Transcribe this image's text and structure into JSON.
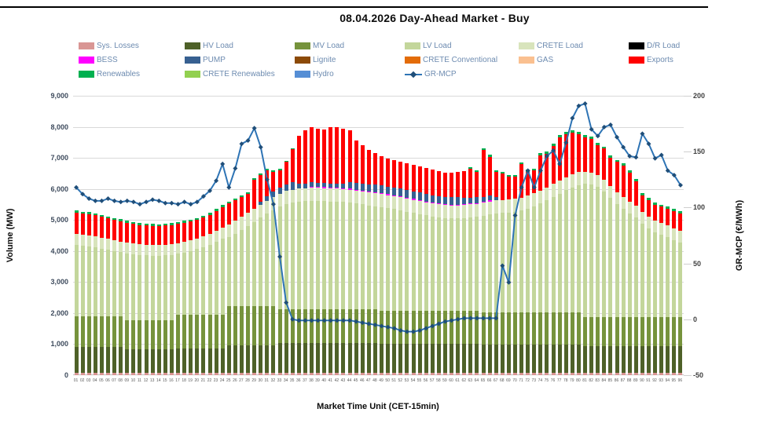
{
  "page": {
    "title": "08.04.2026  Day-Ahead Market - Buy"
  },
  "legend": {
    "items": [
      {
        "label": "Sys. Losses",
        "color": "#d99694",
        "swatch": "box"
      },
      {
        "label": "HV Load",
        "color": "#4e6128",
        "swatch": "box"
      },
      {
        "label": "MV Load",
        "color": "#76933c",
        "swatch": "box"
      },
      {
        "label": "LV Load",
        "color": "#c3d69b",
        "swatch": "box"
      },
      {
        "label": "CRETE Load",
        "color": "#d8e4bc",
        "swatch": "box"
      },
      {
        "label": "D/R Load",
        "color": "#000000",
        "swatch": "box"
      },
      {
        "label": "BESS",
        "color": "#ff00ff",
        "swatch": "box"
      },
      {
        "label": "PUMP",
        "color": "#376091",
        "swatch": "box"
      },
      {
        "label": "Lignite",
        "color": "#8c4a08",
        "swatch": "box"
      },
      {
        "label": "CRETE Conventional",
        "color": "#e36c09",
        "swatch": "box"
      },
      {
        "label": "GAS",
        "color": "#fac090",
        "swatch": "box"
      },
      {
        "label": "Exports",
        "color": "#ff0000",
        "swatch": "box"
      },
      {
        "label": "Renewables",
        "color": "#00b050",
        "swatch": "box"
      },
      {
        "label": "CRETE Renewables",
        "color": "#92d050",
        "swatch": "box"
      },
      {
        "label": "Hydro",
        "color": "#558ed5",
        "swatch": "box"
      },
      {
        "label": "GR-MCP",
        "color": "#2e74b5",
        "marker_color": "#1f4e79",
        "swatch": "line"
      }
    ]
  },
  "axes": {
    "left": {
      "title": "Volume (MW)",
      "ticks": [
        "9,000",
        "8,000",
        "7,000",
        "6,000",
        "5,000",
        "4,000",
        "3,000",
        "2,000",
        "1,000",
        "0"
      ]
    },
    "right": {
      "title": "GR-MCP (€/MWh)",
      "ticks": [
        "200",
        "150",
        "100",
        "50",
        "0",
        "-50"
      ]
    },
    "x": {
      "title": "Market Time Unit (CET-15min)"
    }
  },
  "chart_data": {
    "type": "stacked-bar-line-combo",
    "title": "08.04.2026  Day-Ahead Market - Buy",
    "x_label": "Market Time Unit (CET-15min)",
    "y_left": {
      "label": "Volume (MW)",
      "min": 0,
      "max": 9000,
      "grid_step": 1000,
      "grid": true
    },
    "y_right": {
      "label": "GR-MCP (€/MWh)",
      "min": -50,
      "max": 200,
      "step": 50
    },
    "legend_position": "top",
    "x_labels": [
      "01",
      "02",
      "03",
      "04",
      "05",
      "06",
      "07",
      "08",
      "09",
      "10",
      "11",
      "12",
      "13",
      "14",
      "15",
      "16",
      "17",
      "18",
      "19",
      "20",
      "21",
      "22",
      "23",
      "24",
      "25",
      "26",
      "27",
      "28",
      "29",
      "30",
      "31",
      "32",
      "33",
      "34",
      "35",
      "36",
      "37",
      "38",
      "39",
      "40",
      "41",
      "42",
      "43",
      "44",
      "45",
      "46",
      "47",
      "48",
      "49",
      "50",
      "51",
      "52",
      "53",
      "54",
      "55",
      "56",
      "57",
      "58",
      "59",
      "60",
      "61",
      "62",
      "63",
      "64",
      "65",
      "66",
      "67",
      "68",
      "69",
      "70",
      "71",
      "72",
      "73",
      "74",
      "75",
      "76",
      "77",
      "78",
      "79",
      "80",
      "81",
      "82",
      "83",
      "84",
      "85",
      "86",
      "87",
      "88",
      "89",
      "90",
      "91",
      "92",
      "93",
      "94",
      "95",
      "96"
    ],
    "series": [
      {
        "name": "Sys. Losses",
        "color": "#d99694",
        "values": [
          80,
          80,
          80,
          80,
          80,
          80,
          80,
          80,
          80,
          80,
          80,
          80,
          80,
          80,
          80,
          80,
          80,
          80,
          80,
          80,
          80,
          80,
          80,
          80,
          80,
          80,
          80,
          80,
          80,
          80,
          80,
          80,
          80,
          80,
          80,
          80,
          80,
          80,
          80,
          80,
          80,
          80,
          80,
          80,
          80,
          80,
          80,
          80,
          80,
          80,
          80,
          80,
          80,
          80,
          80,
          80,
          80,
          80,
          80,
          80,
          80,
          80,
          80,
          80,
          80,
          80,
          80,
          80,
          80,
          80,
          80,
          80,
          80,
          80,
          80,
          80,
          80,
          80,
          80,
          80,
          80,
          80,
          80,
          80,
          80,
          80,
          80,
          80,
          80,
          80,
          80,
          80,
          80,
          80,
          80,
          80
        ]
      },
      {
        "name": "HV Load",
        "color": "#4e6128",
        "values": [
          820,
          820,
          820,
          820,
          820,
          820,
          820,
          820,
          760,
          760,
          760,
          760,
          760,
          760,
          760,
          760,
          790,
          790,
          790,
          790,
          790,
          790,
          790,
          790,
          870,
          870,
          870,
          870,
          870,
          870,
          870,
          870,
          950,
          950,
          950,
          950,
          950,
          950,
          950,
          950,
          950,
          950,
          950,
          950,
          950,
          950,
          950,
          950,
          930,
          930,
          930,
          930,
          930,
          930,
          930,
          930,
          930,
          930,
          930,
          930,
          930,
          930,
          930,
          930,
          900,
          900,
          900,
          900,
          900,
          900,
          900,
          900,
          900,
          900,
          900,
          900,
          900,
          900,
          900,
          900,
          860,
          860,
          860,
          860,
          860,
          860,
          860,
          860,
          860,
          860,
          860,
          860,
          860,
          860,
          860,
          860
        ]
      },
      {
        "name": "MV Load",
        "color": "#76933c",
        "values": [
          1000,
          1000,
          1000,
          1000,
          1000,
          1000,
          1000,
          1000,
          940,
          940,
          940,
          940,
          940,
          940,
          940,
          940,
          1080,
          1080,
          1080,
          1080,
          1080,
          1080,
          1080,
          1080,
          1280,
          1280,
          1280,
          1280,
          1280,
          1280,
          1280,
          1280,
          1100,
          1100,
          1100,
          1100,
          1100,
          1100,
          1100,
          1100,
          1100,
          1100,
          1100,
          1100,
          1100,
          1100,
          1100,
          1100,
          1070,
          1070,
          1070,
          1070,
          1070,
          1070,
          1070,
          1070,
          1070,
          1070,
          1070,
          1070,
          1070,
          1070,
          1070,
          1070,
          1050,
          1050,
          1050,
          1050,
          1050,
          1050,
          1050,
          1050,
          1050,
          1050,
          1050,
          1050,
          1050,
          1050,
          1050,
          1050,
          940,
          940,
          940,
          940,
          940,
          940,
          940,
          940,
          940,
          940,
          940,
          940,
          940,
          940,
          940,
          940
        ]
      },
      {
        "name": "LV Load",
        "color": "#c3d69b",
        "values": [
          2300,
          2280,
          2250,
          2220,
          2180,
          2140,
          2100,
          2060,
          2150,
          2120,
          2100,
          2080,
          2070,
          2070,
          2080,
          2100,
          1960,
          2000,
          2050,
          2110,
          2180,
          2260,
          2350,
          2450,
          2210,
          2330,
          2450,
          2580,
          2710,
          2840,
          2970,
          3090,
          3300,
          3380,
          3430,
          3460,
          3480,
          3490,
          3490,
          3480,
          3470,
          3460,
          3450,
          3430,
          3400,
          3370,
          3340,
          3310,
          3330,
          3300,
          3270,
          3230,
          3190,
          3150,
          3110,
          3070,
          3030,
          3000,
          2980,
          2970,
          2970,
          2980,
          3000,
          3020,
          3110,
          3150,
          3180,
          3200,
          3210,
          3230,
          3270,
          3330,
          3410,
          3500,
          3600,
          3710,
          3820,
          3930,
          4020,
          4090,
          4290,
          4260,
          4190,
          4040,
          3840,
          3640,
          3490,
          3340,
          3190,
          2990,
          2840,
          2720,
          2640,
          2560,
          2460,
          2400
        ]
      },
      {
        "name": "CRETE Load",
        "color": "#d8e4bc",
        "values": [
          350,
          350,
          350,
          350,
          350,
          350,
          350,
          350,
          350,
          350,
          350,
          350,
          350,
          350,
          350,
          350,
          350,
          350,
          350,
          350,
          350,
          350,
          350,
          350,
          420,
          420,
          420,
          420,
          420,
          420,
          420,
          420,
          420,
          420,
          420,
          420,
          420,
          420,
          420,
          420,
          420,
          420,
          420,
          420,
          420,
          420,
          420,
          420,
          420,
          420,
          420,
          420,
          420,
          420,
          420,
          420,
          420,
          420,
          420,
          420,
          420,
          420,
          420,
          420,
          420,
          420,
          420,
          420,
          420,
          420,
          420,
          420,
          420,
          420,
          420,
          420,
          420,
          420,
          420,
          420,
          380,
          380,
          380,
          380,
          380,
          380,
          380,
          380,
          380,
          380,
          380,
          380,
          380,
          380,
          380,
          380
        ]
      },
      {
        "name": "BESS",
        "color": "#ff00ff",
        "values": [
          0,
          0,
          0,
          0,
          0,
          0,
          0,
          0,
          0,
          0,
          0,
          0,
          0,
          0,
          0,
          0,
          0,
          0,
          0,
          0,
          0,
          0,
          0,
          0,
          0,
          0,
          0,
          0,
          0,
          0,
          0,
          0,
          0,
          0,
          0,
          0,
          0,
          30,
          30,
          30,
          30,
          30,
          30,
          30,
          30,
          30,
          30,
          30,
          30,
          30,
          30,
          30,
          30,
          30,
          30,
          30,
          30,
          30,
          30,
          30,
          30,
          30,
          30,
          30,
          30,
          30,
          0,
          0,
          0,
          0,
          0,
          0,
          0,
          0,
          0,
          0,
          0,
          0,
          0,
          0,
          0,
          0,
          0,
          0,
          0,
          0,
          0,
          0,
          0,
          0,
          0,
          0,
          0,
          0,
          0,
          0
        ]
      },
      {
        "name": "PUMP",
        "color": "#376091",
        "values": [
          0,
          0,
          0,
          0,
          0,
          0,
          0,
          0,
          0,
          0,
          0,
          0,
          0,
          0,
          0,
          0,
          0,
          0,
          0,
          0,
          0,
          0,
          0,
          0,
          0,
          0,
          0,
          0,
          0,
          100,
          150,
          180,
          200,
          220,
          230,
          150,
          150,
          150,
          130,
          130,
          130,
          130,
          150,
          200,
          220,
          230,
          230,
          250,
          250,
          250,
          250,
          250,
          250,
          250,
          250,
          250,
          230,
          230,
          230,
          230,
          230,
          200,
          180,
          180,
          150,
          150,
          100,
          0,
          0,
          0,
          0,
          0,
          0,
          0,
          0,
          0,
          0,
          0,
          0,
          0,
          0,
          0,
          0,
          0,
          0,
          0,
          0,
          0,
          0,
          0,
          0,
          0,
          0,
          0,
          0,
          0
        ]
      },
      {
        "name": "Exports",
        "color": "#ff0000",
        "values": [
          690,
          680,
          690,
          690,
          680,
          670,
          660,
          650,
          630,
          620,
          610,
          610,
          610,
          600,
          610,
          610,
          610,
          610,
          600,
          590,
          600,
          610,
          640,
          670,
          680,
          660,
          640,
          610,
          930,
          850,
          820,
          620,
          540,
          720,
          1060,
          1540,
          1720,
          1770,
          1750,
          1730,
          1810,
          1830,
          1770,
          1690,
          1350,
          1220,
          1100,
          1010,
          940,
          900,
          870,
          860,
          850,
          840,
          830,
          820,
          830,
          810,
          790,
          790,
          810,
          870,
          930,
          810,
          1520,
          1260,
          810,
          840,
          730,
          710,
          1070,
          780,
          740,
          1140,
          1090,
          1230,
          1400,
          1390,
          1350,
          1230,
          1120,
          1100,
          970,
          1010,
          910,
          980,
          1010,
          930,
          800,
          550,
          550,
          520,
          540,
          550,
          570,
          560
        ]
      },
      {
        "name": "Renewables",
        "color": "#00b050",
        "values": [
          60,
          60,
          60,
          60,
          60,
          60,
          60,
          60,
          60,
          60,
          60,
          60,
          60,
          60,
          60,
          60,
          60,
          60,
          60,
          60,
          60,
          60,
          60,
          60,
          60,
          60,
          60,
          60,
          60,
          60,
          60,
          60,
          60,
          30,
          30,
          0,
          0,
          0,
          0,
          0,
          0,
          0,
          0,
          0,
          0,
          0,
          0,
          0,
          0,
          0,
          0,
          0,
          0,
          0,
          0,
          0,
          0,
          0,
          0,
          0,
          0,
          0,
          60,
          60,
          60,
          60,
          60,
          60,
          60,
          60,
          60,
          60,
          60,
          60,
          60,
          60,
          60,
          60,
          60,
          60,
          60,
          60,
          60,
          60,
          60,
          60,
          60,
          60,
          60,
          60,
          60,
          60,
          60,
          60,
          60,
          60
        ]
      }
    ],
    "line": {
      "name": "GR-MCP",
      "axis": "right",
      "unit": "€/MWh",
      "color": "#2e74b5",
      "marker": "diamond",
      "marker_color": "#1f4e79",
      "values": [
        118,
        112,
        108,
        106,
        106,
        108,
        106,
        105,
        106,
        105,
        103,
        105,
        107,
        106,
        104,
        104,
        103,
        105,
        103,
        105,
        110,
        115,
        124,
        139,
        118,
        135,
        157,
        160,
        171,
        154,
        125,
        103,
        56,
        15,
        0,
        -1,
        -1,
        -1,
        -1,
        -1,
        -1,
        -1,
        -1,
        -1,
        -2,
        -3,
        -4,
        -5,
        -6,
        -7,
        -8,
        -10,
        -11,
        -11,
        -10,
        -8,
        -6,
        -4,
        -2,
        -1,
        0,
        1,
        1,
        1,
        1,
        1,
        1,
        48,
        33,
        93,
        118,
        133,
        118,
        133,
        146,
        151,
        139,
        158,
        180,
        191,
        193,
        170,
        164,
        172,
        174,
        163,
        154,
        146,
        145,
        166,
        157,
        144,
        147,
        133,
        129,
        120
      ]
    }
  }
}
